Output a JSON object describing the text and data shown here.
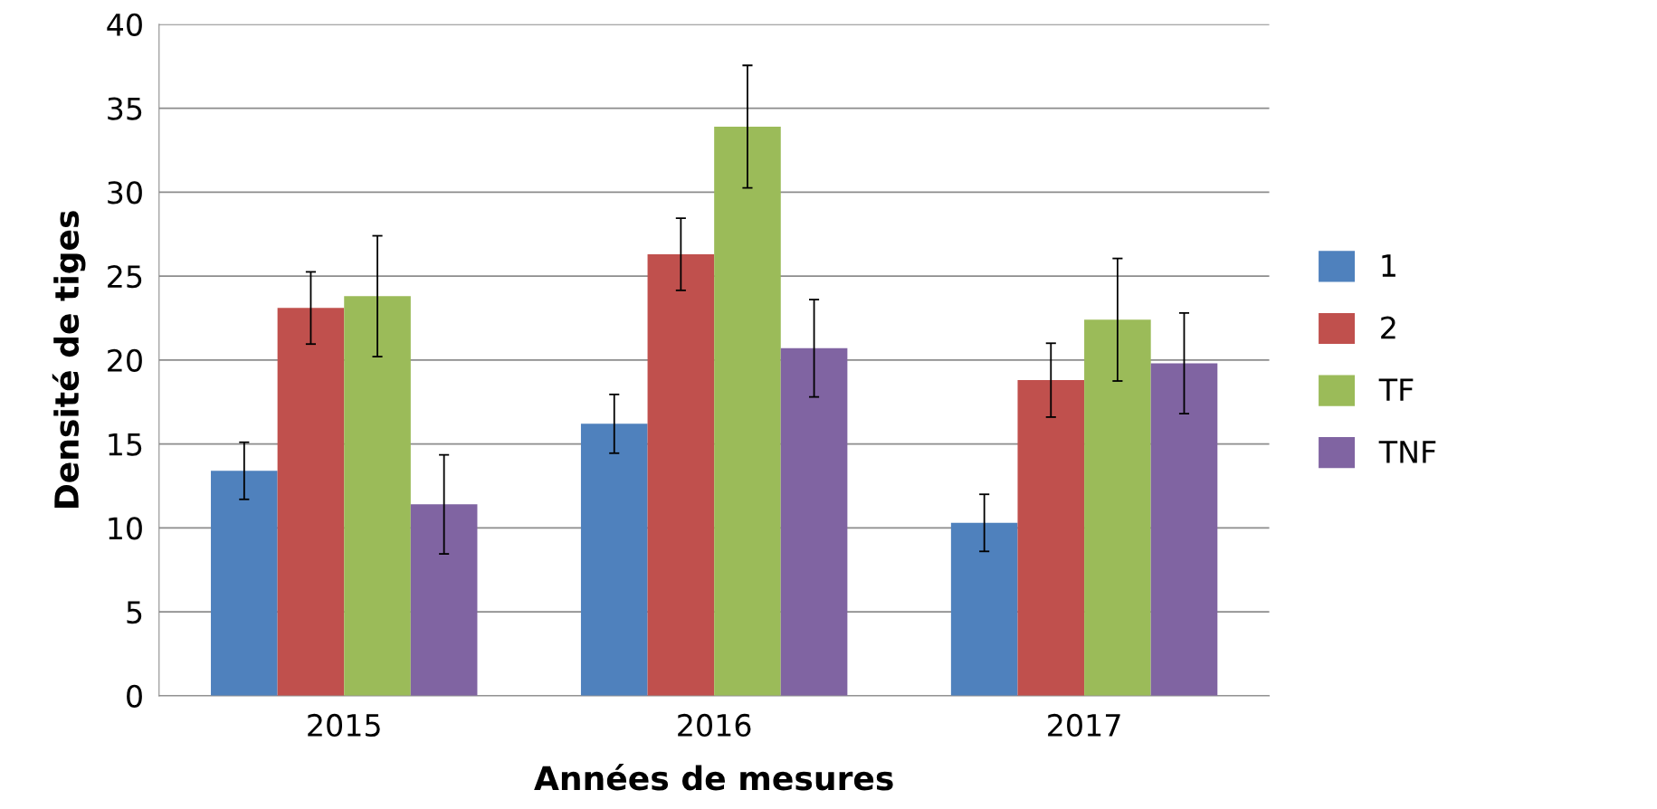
{
  "chart_data": {
    "type": "bar",
    "xlabel": "Années de mesures",
    "ylabel": "Densité de tiges",
    "categories": [
      "2015",
      "2016",
      "2017"
    ],
    "series": [
      {
        "name": "1",
        "color": "#4f81bd",
        "values": [
          13.4,
          16.2,
          10.3
        ],
        "errors": [
          1.7,
          1.75,
          1.7
        ]
      },
      {
        "name": "2",
        "color": "#c0504d",
        "values": [
          23.1,
          26.3,
          18.8
        ],
        "errors": [
          2.15,
          2.15,
          2.2
        ]
      },
      {
        "name": "TF",
        "color": "#9bbb59",
        "values": [
          23.8,
          33.9,
          22.4
        ],
        "errors": [
          3.6,
          3.65,
          3.65
        ]
      },
      {
        "name": "TNF",
        "color": "#8064a2",
        "values": [
          11.4,
          20.7,
          19.8
        ],
        "errors": [
          2.95,
          2.9,
          3.0
        ]
      }
    ],
    "ylim": [
      0,
      40
    ],
    "yticks": [
      0,
      5,
      10,
      15,
      20,
      25,
      30,
      35,
      40
    ],
    "grid": "y",
    "legend": "right"
  }
}
